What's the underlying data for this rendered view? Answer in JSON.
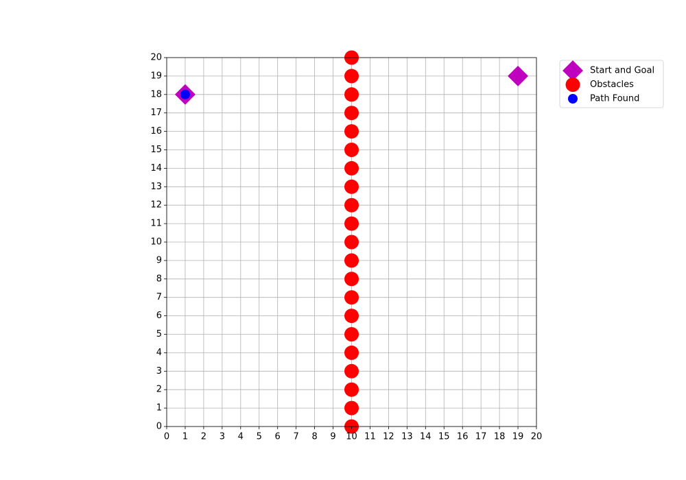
{
  "chart_data": {
    "type": "scatter",
    "xlim": [
      0,
      20
    ],
    "ylim": [
      0,
      20
    ],
    "xticks": [
      0,
      1,
      2,
      3,
      4,
      5,
      6,
      7,
      8,
      9,
      10,
      11,
      12,
      13,
      14,
      15,
      16,
      17,
      18,
      19,
      20
    ],
    "yticks": [
      0,
      1,
      2,
      3,
      4,
      5,
      6,
      7,
      8,
      9,
      10,
      11,
      12,
      13,
      14,
      15,
      16,
      17,
      18,
      19,
      20
    ],
    "grid": true,
    "legend": "outside upper right",
    "series": [
      {
        "name": "Start and Goal",
        "color": "#bf00bf",
        "marker": "diamond",
        "x": [
          1,
          19
        ],
        "values": [
          18,
          19
        ]
      },
      {
        "name": "Obstacles",
        "color": "#ff0000",
        "marker": "circle",
        "x": [
          10,
          10,
          10,
          10,
          10,
          10,
          10,
          10,
          10,
          10,
          10,
          10,
          10,
          10,
          10,
          10,
          10,
          10,
          10,
          10,
          10
        ],
        "values": [
          0,
          1,
          2,
          3,
          4,
          5,
          6,
          7,
          8,
          9,
          10,
          11,
          12,
          13,
          14,
          15,
          16,
          17,
          18,
          19,
          20
        ]
      },
      {
        "name": "Path Found",
        "color": "#0000ff",
        "marker": "small-circle",
        "x": [
          1
        ],
        "values": [
          18
        ]
      }
    ]
  }
}
